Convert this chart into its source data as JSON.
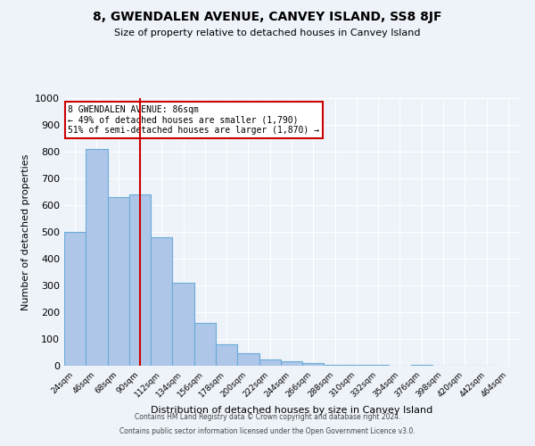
{
  "title": "8, GWENDALEN AVENUE, CANVEY ISLAND, SS8 8JF",
  "subtitle": "Size of property relative to detached houses in Canvey Island",
  "xlabel": "Distribution of detached houses by size in Canvey Island",
  "ylabel": "Number of detached properties",
  "bar_values": [
    500,
    810,
    630,
    640,
    480,
    310,
    160,
    80,
    48,
    25,
    18,
    10,
    5,
    3,
    2,
    1,
    5,
    0,
    0,
    0
  ],
  "bin_starts": [
    13,
    35,
    57,
    79,
    101,
    123,
    145,
    167,
    189,
    211,
    233,
    255,
    277,
    299,
    321,
    343,
    365,
    387,
    409,
    431
  ],
  "bin_width": 22,
  "bin_labels": [
    "24sqm",
    "46sqm",
    "68sqm",
    "90sqm",
    "112sqm",
    "134sqm",
    "156sqm",
    "178sqm",
    "200sqm",
    "222sqm",
    "244sqm",
    "266sqm",
    "288sqm",
    "310sqm",
    "332sqm",
    "354sqm",
    "376sqm",
    "398sqm",
    "420sqm",
    "442sqm",
    "464sqm"
  ],
  "xlim_min": 13,
  "xlim_max": 475,
  "bar_color": "#aec6e8",
  "bar_edge_color": "#6aacd8",
  "vline_x": 90,
  "vline_color": "#cc0000",
  "annotation_title": "8 GWENDALEN AVENUE: 86sqm",
  "annotation_line1": "← 49% of detached houses are smaller (1,790)",
  "annotation_line2": "51% of semi-detached houses are larger (1,870) →",
  "annotation_box_color": "#cc0000",
  "ylim": [
    0,
    1000
  ],
  "yticks": [
    0,
    100,
    200,
    300,
    400,
    500,
    600,
    700,
    800,
    900,
    1000
  ],
  "bg_color": "#eef2f9",
  "grid_color": "#ffffff",
  "footer1": "Contains HM Land Registry data © Crown copyright and database right 2024.",
  "footer2": "Contains public sector information licensed under the Open Government Licence v3.0."
}
